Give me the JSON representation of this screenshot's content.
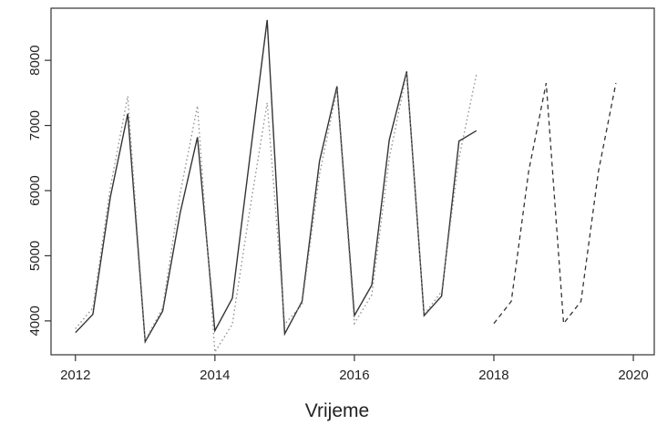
{
  "chart_data": {
    "type": "line",
    "title": "",
    "xlabel": "Vrijeme",
    "ylabel": "",
    "xlim": [
      2011.65,
      2020.3
    ],
    "ylim": [
      3480,
      8800
    ],
    "x_ticks": [
      2012,
      2014,
      2016,
      2018,
      2020
    ],
    "x_tick_labels": [
      "2012",
      "2014",
      "2016",
      "2018",
      "2020"
    ],
    "y_ticks": [
      4000,
      5000,
      6000,
      7000,
      8000
    ],
    "y_tick_labels": [
      "4000",
      "5000",
      "6000",
      "7000",
      "8000"
    ],
    "grid": false,
    "legend": "none",
    "series": [
      {
        "line_style": "solid",
        "color": "#333333",
        "points": [
          [
            2012.0,
            3820
          ],
          [
            2012.25,
            4100
          ],
          [
            2012.5,
            5900
          ],
          [
            2012.75,
            7180
          ],
          [
            2013.0,
            3680
          ],
          [
            2013.25,
            4150
          ],
          [
            2013.5,
            5650
          ],
          [
            2013.75,
            6820
          ],
          [
            2014.0,
            3850
          ],
          [
            2014.25,
            4350
          ],
          [
            2014.5,
            6500
          ],
          [
            2014.75,
            8620
          ],
          [
            2015.0,
            3800
          ],
          [
            2015.25,
            4300
          ],
          [
            2015.5,
            6450
          ],
          [
            2015.75,
            7600
          ],
          [
            2016.0,
            4080
          ],
          [
            2016.25,
            4550
          ],
          [
            2016.5,
            6780
          ],
          [
            2016.75,
            7830
          ],
          [
            2017.0,
            4080
          ],
          [
            2017.25,
            4380
          ],
          [
            2017.5,
            6760
          ],
          [
            2017.75,
            6920
          ]
        ]
      },
      {
        "line_style": "dotted",
        "color": "#8a8a8a",
        "points": [
          [
            2012.0,
            3880
          ],
          [
            2012.25,
            4200
          ],
          [
            2012.5,
            6050
          ],
          [
            2012.75,
            7450
          ],
          [
            2013.0,
            3700
          ],
          [
            2013.25,
            4200
          ],
          [
            2013.5,
            5950
          ],
          [
            2013.75,
            7300
          ],
          [
            2014.0,
            3520
          ],
          [
            2014.25,
            3950
          ],
          [
            2014.5,
            5700
          ],
          [
            2014.75,
            7350
          ],
          [
            2015.0,
            3950
          ],
          [
            2015.25,
            4250
          ],
          [
            2015.5,
            6250
          ],
          [
            2015.75,
            7550
          ],
          [
            2016.0,
            3960
          ],
          [
            2016.25,
            4400
          ],
          [
            2016.5,
            6500
          ],
          [
            2016.75,
            7800
          ],
          [
            2017.0,
            4100
          ],
          [
            2017.25,
            4450
          ],
          [
            2017.5,
            6500
          ],
          [
            2017.75,
            7780
          ]
        ]
      },
      {
        "line_style": "dashed",
        "color": "#333333",
        "points": [
          [
            2018.0,
            3960
          ],
          [
            2018.25,
            4300
          ],
          [
            2018.5,
            6300
          ],
          [
            2018.75,
            7650
          ],
          [
            2019.0,
            3960
          ],
          [
            2019.25,
            4300
          ],
          [
            2019.5,
            6300
          ],
          [
            2019.75,
            7650
          ]
        ]
      }
    ]
  }
}
